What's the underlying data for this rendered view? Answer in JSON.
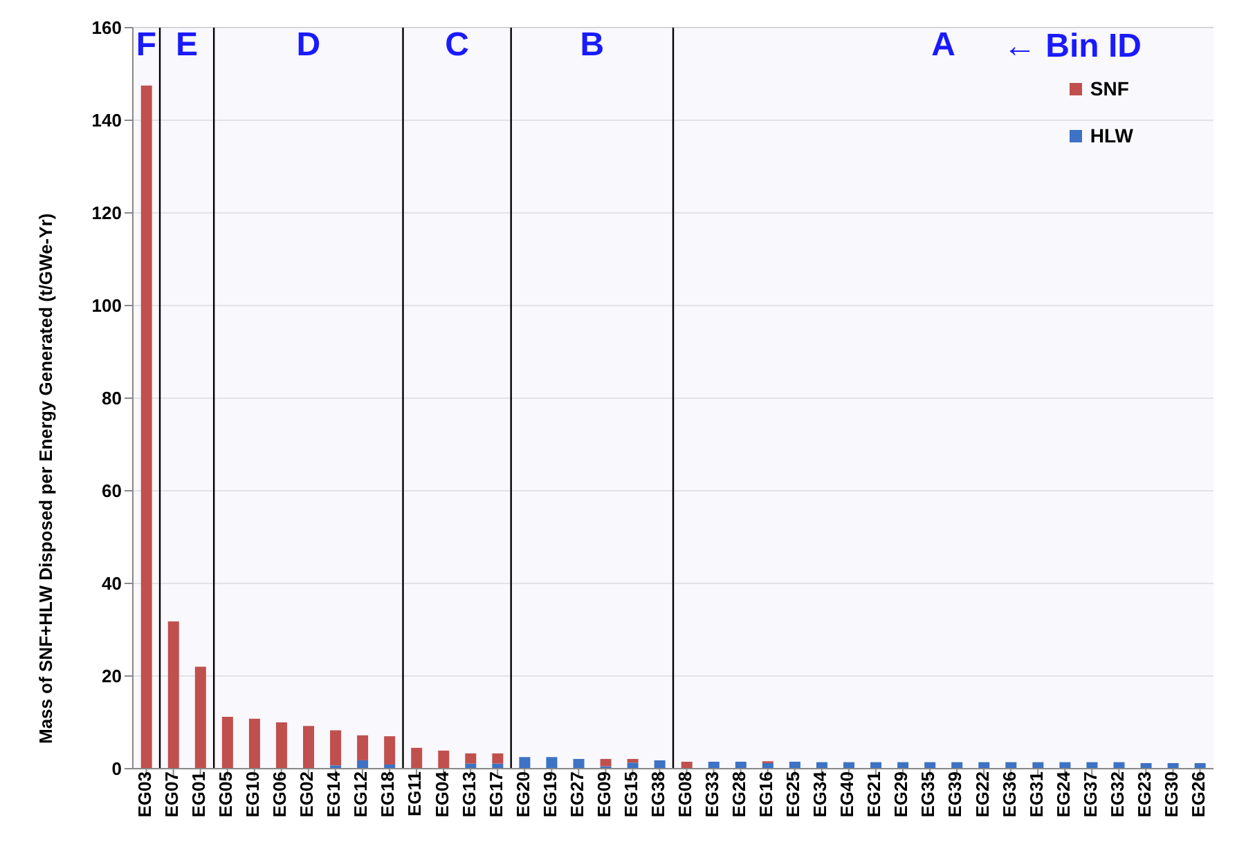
{
  "chart_data": {
    "type": "bar",
    "stacked": true,
    "ylabel": "Mass of SNF+HLW Disposed per Energy Generated (t/GWe-Yr)",
    "categories": [
      "EG03",
      "EG07",
      "EG01",
      "EG05",
      "EG10",
      "EG06",
      "EG02",
      "EG14",
      "EG12",
      "EG18",
      "EG11",
      "EG04",
      "EG13",
      "EG17",
      "EG20",
      "EG19",
      "EG27",
      "EG09",
      "EG15",
      "EG38",
      "EG08",
      "EG33",
      "EG28",
      "EG16",
      "EG25",
      "EG34",
      "EG40",
      "EG21",
      "EG29",
      "EG35",
      "EG39",
      "EG22",
      "EG36",
      "EG31",
      "EG24",
      "EG37",
      "EG32",
      "EG23",
      "EG30",
      "EG26"
    ],
    "series": [
      {
        "name": "HLW",
        "color": "#3d72c4",
        "values": [
          null,
          null,
          null,
          null,
          null,
          null,
          null,
          0.7,
          1.8,
          0.9,
          null,
          null,
          1.1,
          1.1,
          2.5,
          2.5,
          2.1,
          0.5,
          1.3,
          1.8,
          null,
          1.5,
          1.5,
          1.2,
          1.5,
          1.4,
          1.4,
          1.4,
          1.4,
          1.4,
          1.4,
          1.4,
          1.4,
          1.4,
          1.4,
          1.4,
          1.4,
          1.2,
          1.2,
          1.2
        ]
      },
      {
        "name": "SNF",
        "color": "#c0504d",
        "values": [
          147.5,
          31.8,
          22,
          11.2,
          10.8,
          10,
          9.2,
          7.6,
          5.4,
          6.1,
          4.5,
          3.9,
          2.2,
          2.2,
          null,
          null,
          null,
          1.6,
          0.8,
          null,
          1.5,
          null,
          null,
          0.4,
          null,
          null,
          null,
          null,
          null,
          null,
          null,
          null,
          null,
          null,
          null,
          null,
          null,
          null,
          null,
          null
        ]
      }
    ],
    "ylim": [
      0,
      160
    ],
    "yticks": [
      0,
      20,
      40,
      60,
      80,
      100,
      120,
      140,
      160
    ],
    "grid": "y",
    "legend": "top right",
    "bands": [
      {
        "axis": "x",
        "from": "EG03",
        "to": "EG03",
        "label": "F",
        "color": "#f4f4fb"
      },
      {
        "axis": "x",
        "from": "EG07",
        "to": "EG01",
        "label": "E",
        "color": "#f4f4fb"
      },
      {
        "axis": "x",
        "from": "EG05",
        "to": "EG18",
        "label": "D",
        "color": "#f4f4fb"
      },
      {
        "axis": "x",
        "from": "EG11",
        "to": "EG17",
        "label": "C",
        "color": "#f4f4fb"
      },
      {
        "axis": "x",
        "from": "EG20",
        "to": "EG38",
        "label": "B",
        "color": "#f4f4fb"
      },
      {
        "axis": "x",
        "from": "EG08",
        "to": "EG26",
        "label": "A",
        "color": "#f4f4fb"
      }
    ],
    "annotations": [
      "← Bin ID"
    ]
  }
}
